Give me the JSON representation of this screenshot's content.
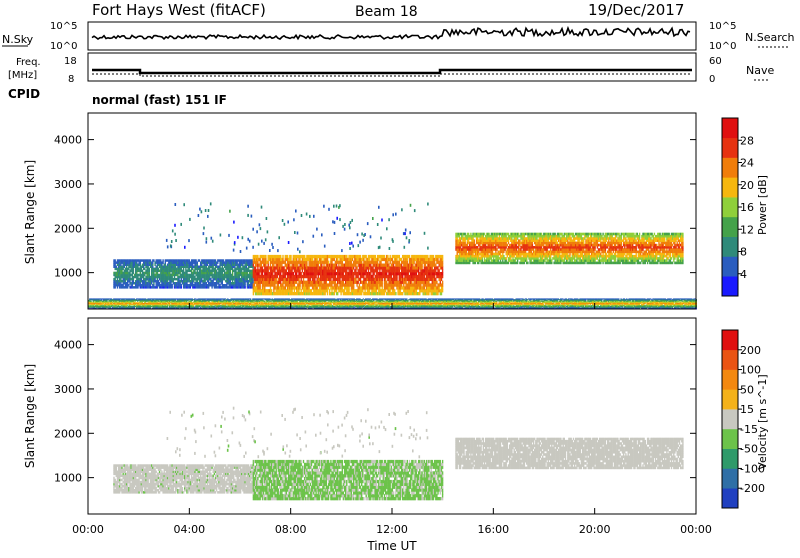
{
  "header": {
    "station": "Fort Hays West (fitACF)",
    "beam": "Beam 18",
    "date": "19/Dec/2017"
  },
  "panels": {
    "nsky": {
      "left_label": "N.Sky",
      "tick_top": "10^5",
      "tick_bottom": "10^0",
      "right_label": "N.Search",
      "right_tick_top": "10^5",
      "right_tick_bottom": "10^0"
    },
    "freq": {
      "label_line1": "Freq.",
      "label_line2": "[MHz]",
      "tick_top": "18",
      "tick_bottom": "8",
      "right_label": "Nave",
      "right_tick_top": "60",
      "right_tick_bottom": "0"
    },
    "cpid": {
      "label": "CPID",
      "mode": "normal (fast) 151 IF"
    }
  },
  "chart_data": [
    {
      "type": "heatmap",
      "name": "power",
      "ylabel": "Slant Range [km]",
      "yticks": [
        "1000",
        "2000",
        "3000",
        "4000"
      ],
      "ylim": [
        180,
        4600
      ],
      "xlim": [
        0,
        24
      ],
      "colorbar": {
        "label": "Power [dB]",
        "ticks": [
          "4",
          "8",
          "12",
          "16",
          "20",
          "24",
          "28"
        ],
        "range": [
          0,
          32
        ],
        "colors": [
          "#1a1aff",
          "#2a5dbf",
          "#2f8a7a",
          "#44a24a",
          "#8fcf3a",
          "#f6b70e",
          "#f07d0a",
          "#e63210",
          "#e01010"
        ]
      },
      "features": [
        {
          "name": "morning band",
          "t": [
            1.0,
            6.5
          ],
          "range_km": [
            650,
            1300
          ],
          "power_db": [
            6,
            12
          ]
        },
        {
          "name": "main echo",
          "t": [
            6.5,
            14.0
          ],
          "range_km": [
            500,
            1400
          ],
          "power_db": [
            20,
            30
          ]
        },
        {
          "name": "evening band",
          "t": [
            14.5,
            23.5
          ],
          "range_km": [
            1200,
            1900
          ],
          "power_db": [
            14,
            28
          ]
        },
        {
          "name": "near-range clutter",
          "t": [
            0,
            24
          ],
          "range_km": [
            180,
            420
          ],
          "power_db": [
            4,
            24
          ]
        }
      ]
    },
    {
      "type": "heatmap",
      "name": "velocity",
      "ylabel": "Slant Range [km]",
      "xlabel": "Time UT",
      "yticks": [
        "1000",
        "2000",
        "3000",
        "4000"
      ],
      "xticks": [
        "00:00",
        "04:00",
        "08:00",
        "12:00",
        "16:00",
        "20:00",
        "00:00"
      ],
      "ylim": [
        180,
        4600
      ],
      "xlim": [
        0,
        24
      ],
      "colorbar": {
        "label": "Velocity [m s^-1]",
        "ticks": [
          "200",
          "100",
          "50",
          "15",
          "-15",
          "-50",
          "-100",
          "-200"
        ],
        "range": [
          -250,
          250
        ],
        "colors": [
          "#2040c0",
          "#2f6fa6",
          "#2f9a6a",
          "#6cc34a",
          "#c8c8c0",
          "#f4b21a",
          "#f3880f",
          "#ea5414",
          "#e01010"
        ]
      },
      "features": [
        {
          "name": "morning band",
          "t": [
            1.0,
            6.5
          ],
          "range_km": [
            650,
            1300
          ],
          "velocity": [
            -30,
            10
          ]
        },
        {
          "name": "main echo",
          "t": [
            6.5,
            14.0
          ],
          "range_km": [
            500,
            1400
          ],
          "velocity": [
            -50,
            -20
          ]
        },
        {
          "name": "evening band",
          "t": [
            14.5,
            23.5
          ],
          "range_km": [
            1200,
            1900
          ],
          "velocity": [
            -10,
            10
          ]
        }
      ]
    }
  ]
}
